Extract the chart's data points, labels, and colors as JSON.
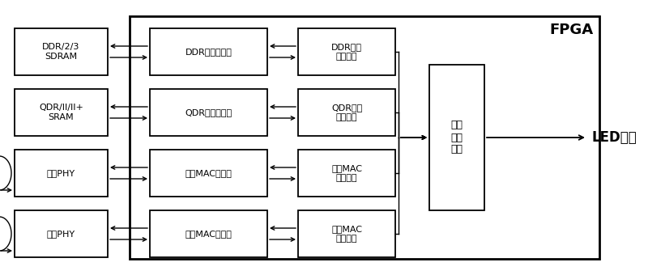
{
  "title": "FPGA",
  "background": "#ffffff",
  "rows": [
    {
      "left_label": "DDR/2/3\nSDRAM",
      "ctrl_label": "DDR内存控制器",
      "detect_label": "DDR内存\n检测模块",
      "has_loop": false
    },
    {
      "left_label": "QDR/II/II+\nSRAM",
      "ctrl_label": "QDR内存控制器",
      "detect_label": "QDR内存\n检测模块",
      "has_loop": false
    },
    {
      "left_label": "千兆PHY",
      "ctrl_label": "千兆MAC控制器",
      "detect_label": "千兆MAC\n检测模块",
      "has_loop": true
    },
    {
      "left_label": "万兆PHY",
      "ctrl_label": "万兆MAC控制器",
      "detect_label": "万兆MAC\n检测模块",
      "has_loop": true
    }
  ],
  "result_label": "结果\n汇总\n模块",
  "led_label": "LED显示",
  "font_size": 8,
  "fpga_label_size": 13
}
